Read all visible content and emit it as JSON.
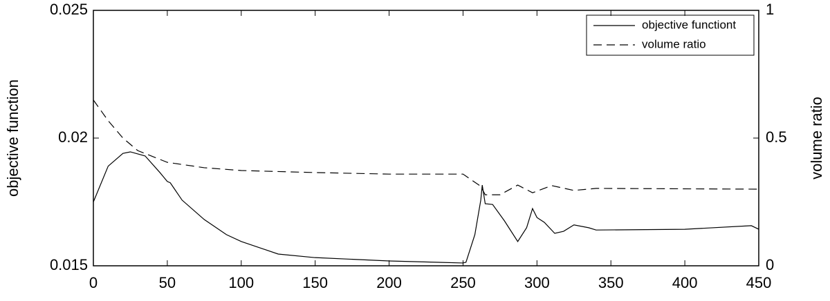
{
  "chart_data": {
    "type": "line",
    "xlabel": null,
    "ylabel": "objective function",
    "y2label": "volume ratio",
    "xlim": [
      0,
      450
    ],
    "xticks": [
      0,
      50,
      100,
      150,
      200,
      250,
      300,
      350,
      400,
      450
    ],
    "ylim": [
      0.015,
      0.025
    ],
    "yticks": [
      0.015,
      0.02,
      0.025
    ],
    "y2lim": [
      0,
      1
    ],
    "y2ticks": [
      0,
      0.5,
      1
    ],
    "legend": "upper right",
    "series": [
      {
        "name": "objective functiont",
        "color": "#000000",
        "dash": "solid",
        "axis": "y",
        "x": [
          0,
          10,
          20,
          25,
          35,
          45,
          50,
          52,
          60,
          75,
          90,
          100,
          125,
          150,
          200,
          250,
          252,
          258,
          262,
          263,
          265,
          270,
          278,
          287,
          293,
          297,
          300,
          305,
          312,
          318,
          325,
          335,
          340,
          400,
          445,
          450
        ],
        "values": [
          0.0175,
          0.0189,
          0.0194,
          0.01946,
          0.0193,
          0.01865,
          0.0183,
          0.01825,
          0.01757,
          0.01681,
          0.01622,
          0.01595,
          0.01546,
          0.01532,
          0.01519,
          0.01511,
          0.01514,
          0.01622,
          0.01757,
          0.01816,
          0.01743,
          0.0174,
          0.01676,
          0.01595,
          0.01649,
          0.01724,
          0.01689,
          0.0167,
          0.01627,
          0.01635,
          0.0166,
          0.01649,
          0.0164,
          0.01643,
          0.01657,
          0.01643
        ]
      },
      {
        "name": "volume ratio",
        "color": "#000000",
        "dash": "dashed",
        "axis": "y2",
        "x": [
          0,
          10,
          20,
          30,
          50,
          75,
          100,
          150,
          200,
          250,
          262,
          265,
          275,
          287,
          297,
          310,
          325,
          340,
          450
        ],
        "values": [
          0.649,
          0.568,
          0.5,
          0.451,
          0.405,
          0.384,
          0.373,
          0.365,
          0.359,
          0.359,
          0.311,
          0.278,
          0.278,
          0.316,
          0.286,
          0.314,
          0.295,
          0.303,
          0.3
        ]
      }
    ]
  }
}
